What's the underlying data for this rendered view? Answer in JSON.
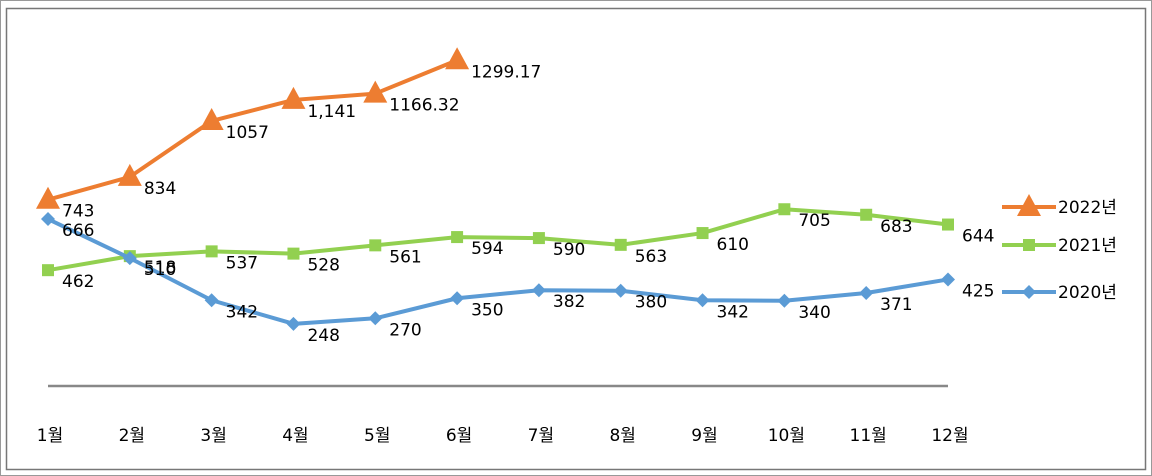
{
  "chart_data": {
    "type": "line",
    "categories": [
      "1월",
      "2월",
      "3월",
      "4월",
      "5월",
      "6월",
      "7월",
      "8월",
      "9월",
      "10월",
      "11월",
      "12월"
    ],
    "series": [
      {
        "name": "2022년",
        "color": "#ED7D31",
        "marker": "triangle",
        "values": [
          743,
          834,
          1057,
          1141,
          1166.32,
          1299.17,
          null,
          null,
          null,
          null,
          null,
          null
        ],
        "value_labels": [
          "743",
          "834",
          "1057",
          "1,141",
          "1166.32",
          "1299.17",
          null,
          null,
          null,
          null,
          null,
          null
        ]
      },
      {
        "name": "2021년",
        "color": "#92D050",
        "marker": "square",
        "values": [
          462,
          518,
          537,
          528,
          561,
          594,
          590,
          563,
          610,
          705,
          683,
          644
        ]
      },
      {
        "name": "2020년",
        "color": "#5B9BD5",
        "marker": "diamond",
        "values": [
          666,
          510,
          342,
          248,
          270,
          350,
          382,
          380,
          342,
          340,
          371,
          425
        ]
      }
    ],
    "ylim": [
      0,
      1400
    ],
    "legend": "right"
  }
}
